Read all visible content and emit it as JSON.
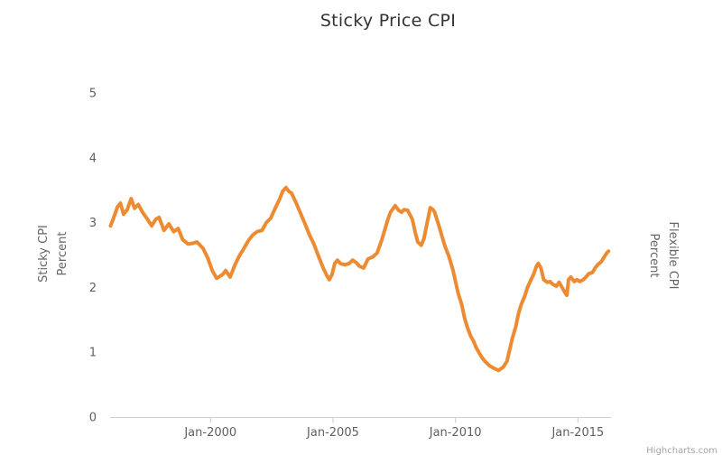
{
  "page": {
    "title": "Sticky Price CPI",
    "credit": "Highcharts.com"
  },
  "chart_data": {
    "type": "line",
    "title": "Sticky Price CPI",
    "left_axis_title": {
      "line1": "Sticky CPI",
      "line2": "Percent"
    },
    "right_axis_title": {
      "line1": "Flexible CPI",
      "line2": "Percent"
    },
    "xlim": [
      1995.9,
      2016.35
    ],
    "ylim": [
      0,
      5
    ],
    "yticks": [
      0,
      1,
      2,
      3,
      4,
      5
    ],
    "xticks": [
      {
        "value": 2000,
        "label": "Jan-2000"
      },
      {
        "value": 2005,
        "label": "Jan-2005"
      },
      {
        "value": 2010,
        "label": "Jan-2010"
      },
      {
        "value": 2015,
        "label": "Jan-2015"
      }
    ],
    "grid": false,
    "legend": false,
    "colors": {
      "line": "#ED8B33",
      "axis_line": "#CCD2DC",
      "tick": "#C5CBD5",
      "tick_label": "#606063",
      "axis_title": "#666666",
      "title": "#333333",
      "credit": "#A0A5AB"
    },
    "series": [
      {
        "name": "Sticky CPI",
        "unit": "Percent",
        "points": [
          [
            1995.92,
            2.95
          ],
          [
            1996.05,
            3.08
          ],
          [
            1996.2,
            3.24
          ],
          [
            1996.32,
            3.3
          ],
          [
            1996.45,
            3.13
          ],
          [
            1996.6,
            3.2
          ],
          [
            1996.76,
            3.37
          ],
          [
            1996.9,
            3.22
          ],
          [
            1997.05,
            3.28
          ],
          [
            1997.24,
            3.15
          ],
          [
            1997.43,
            3.05
          ],
          [
            1997.6,
            2.95
          ],
          [
            1997.76,
            3.05
          ],
          [
            1997.9,
            3.08
          ],
          [
            1998.1,
            2.88
          ],
          [
            1998.3,
            2.98
          ],
          [
            1998.5,
            2.86
          ],
          [
            1998.68,
            2.91
          ],
          [
            1998.86,
            2.74
          ],
          [
            1999.08,
            2.67
          ],
          [
            1999.26,
            2.68
          ],
          [
            1999.45,
            2.7
          ],
          [
            1999.7,
            2.6
          ],
          [
            1999.89,
            2.45
          ],
          [
            2000.07,
            2.26
          ],
          [
            2000.25,
            2.14
          ],
          [
            2000.5,
            2.2
          ],
          [
            2000.62,
            2.26
          ],
          [
            2000.8,
            2.16
          ],
          [
            2001.0,
            2.35
          ],
          [
            2001.18,
            2.49
          ],
          [
            2001.36,
            2.6
          ],
          [
            2001.54,
            2.72
          ],
          [
            2001.73,
            2.81
          ],
          [
            2001.9,
            2.86
          ],
          [
            2002.1,
            2.88
          ],
          [
            2002.28,
            3.0
          ],
          [
            2002.46,
            3.07
          ],
          [
            2002.65,
            3.23
          ],
          [
            2002.83,
            3.37
          ],
          [
            2002.94,
            3.48
          ],
          [
            2003.08,
            3.54
          ],
          [
            2003.2,
            3.48
          ],
          [
            2003.3,
            3.46
          ],
          [
            2003.5,
            3.3
          ],
          [
            2003.68,
            3.14
          ],
          [
            2003.86,
            2.98
          ],
          [
            2004.04,
            2.81
          ],
          [
            2004.22,
            2.67
          ],
          [
            2004.4,
            2.49
          ],
          [
            2004.6,
            2.3
          ],
          [
            2004.74,
            2.19
          ],
          [
            2004.85,
            2.12
          ],
          [
            2004.96,
            2.2
          ],
          [
            2005.07,
            2.37
          ],
          [
            2005.18,
            2.42
          ],
          [
            2005.3,
            2.37
          ],
          [
            2005.48,
            2.35
          ],
          [
            2005.66,
            2.37
          ],
          [
            2005.8,
            2.42
          ],
          [
            2005.96,
            2.38
          ],
          [
            2006.07,
            2.33
          ],
          [
            2006.25,
            2.3
          ],
          [
            2006.43,
            2.44
          ],
          [
            2006.62,
            2.47
          ],
          [
            2006.8,
            2.53
          ],
          [
            2007.0,
            2.74
          ],
          [
            2007.13,
            2.91
          ],
          [
            2007.24,
            3.05
          ],
          [
            2007.35,
            3.16
          ],
          [
            2007.54,
            3.26
          ],
          [
            2007.68,
            3.19
          ],
          [
            2007.8,
            3.16
          ],
          [
            2007.9,
            3.2
          ],
          [
            2008.05,
            3.19
          ],
          [
            2008.24,
            3.05
          ],
          [
            2008.35,
            2.86
          ],
          [
            2008.46,
            2.7
          ],
          [
            2008.6,
            2.65
          ],
          [
            2008.71,
            2.75
          ],
          [
            2008.82,
            2.95
          ],
          [
            2008.97,
            3.23
          ],
          [
            2009.08,
            3.2
          ],
          [
            2009.15,
            3.16
          ],
          [
            2009.34,
            2.93
          ],
          [
            2009.45,
            2.79
          ],
          [
            2009.56,
            2.65
          ],
          [
            2009.74,
            2.47
          ],
          [
            2009.89,
            2.28
          ],
          [
            2010.0,
            2.09
          ],
          [
            2010.11,
            1.91
          ],
          [
            2010.26,
            1.73
          ],
          [
            2010.37,
            1.53
          ],
          [
            2010.48,
            1.39
          ],
          [
            2010.62,
            1.25
          ],
          [
            2010.74,
            1.17
          ],
          [
            2010.85,
            1.07
          ],
          [
            2011.0,
            0.97
          ],
          [
            2011.1,
            0.91
          ],
          [
            2011.21,
            0.86
          ],
          [
            2011.4,
            0.79
          ],
          [
            2011.58,
            0.75
          ],
          [
            2011.76,
            0.72
          ],
          [
            2011.95,
            0.77
          ],
          [
            2012.1,
            0.86
          ],
          [
            2012.21,
            1.03
          ],
          [
            2012.32,
            1.21
          ],
          [
            2012.46,
            1.39
          ],
          [
            2012.57,
            1.59
          ],
          [
            2012.68,
            1.73
          ],
          [
            2012.83,
            1.87
          ],
          [
            2012.94,
            2.0
          ],
          [
            2013.05,
            2.09
          ],
          [
            2013.2,
            2.21
          ],
          [
            2013.31,
            2.33
          ],
          [
            2013.38,
            2.37
          ],
          [
            2013.49,
            2.3
          ],
          [
            2013.6,
            2.12
          ],
          [
            2013.75,
            2.08
          ],
          [
            2013.86,
            2.09
          ],
          [
            2013.97,
            2.05
          ],
          [
            2014.12,
            2.02
          ],
          [
            2014.23,
            2.08
          ],
          [
            2014.34,
            2.01
          ],
          [
            2014.49,
            1.91
          ],
          [
            2014.55,
            1.88
          ],
          [
            2014.62,
            2.12
          ],
          [
            2014.71,
            2.16
          ],
          [
            2014.85,
            2.09
          ],
          [
            2014.96,
            2.12
          ],
          [
            2015.07,
            2.09
          ],
          [
            2015.22,
            2.12
          ],
          [
            2015.33,
            2.16
          ],
          [
            2015.44,
            2.21
          ],
          [
            2015.59,
            2.23
          ],
          [
            2015.7,
            2.3
          ],
          [
            2015.81,
            2.35
          ],
          [
            2015.96,
            2.4
          ],
          [
            2016.07,
            2.47
          ],
          [
            2016.18,
            2.53
          ],
          [
            2016.25,
            2.56
          ]
        ]
      }
    ]
  }
}
